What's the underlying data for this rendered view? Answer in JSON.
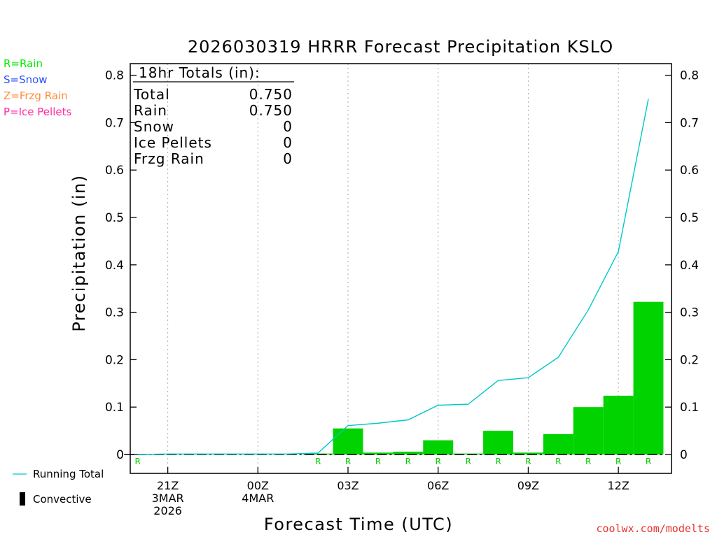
{
  "chart_data": {
    "type": "bar",
    "title": "2026030319 HRRR Forecast Precipitation KSLO",
    "xlabel": "Forecast Time (UTC)",
    "ylabel": "Precipitation (in)",
    "ylim": [
      0,
      0.8
    ],
    "yticks": [
      "0",
      "0.1",
      "0.2",
      "0.3",
      "0.4",
      "0.5",
      "0.6",
      "0.7",
      "0.8"
    ],
    "x_hours": [
      20,
      21,
      22,
      23,
      24,
      25,
      26,
      27,
      28,
      29,
      30,
      31,
      32,
      33,
      34,
      35,
      36,
      37
    ],
    "hourly_precip": [
      0.0,
      0.0,
      0.0,
      0.0,
      0.0,
      0.0,
      0.002,
      0.055,
      0.004,
      0.006,
      0.03,
      0.002,
      0.05,
      0.004,
      0.043,
      0.1,
      0.124,
      0.322
    ],
    "running_total": [
      0.0,
      0.001,
      0.001,
      0.001,
      0.001,
      0.001,
      0.003,
      0.061,
      0.066,
      0.073,
      0.104,
      0.106,
      0.156,
      0.162,
      0.205,
      0.305,
      0.428,
      0.75
    ],
    "precip_types": [
      "R",
      "",
      "",
      "",
      "",
      "",
      "R",
      "R",
      "R",
      "R",
      "R",
      "R",
      "R",
      "R",
      "R",
      "R",
      "R",
      "R"
    ],
    "x_tick_labels": [
      {
        "hour": 21,
        "lines": [
          "21Z",
          "3MAR",
          "2026"
        ]
      },
      {
        "hour": 24,
        "lines": [
          "00Z",
          "4MAR"
        ]
      },
      {
        "hour": 27,
        "lines": [
          "03Z"
        ]
      },
      {
        "hour": 30,
        "lines": [
          "06Z"
        ]
      },
      {
        "hour": 33,
        "lines": [
          "09Z"
        ]
      },
      {
        "hour": 36,
        "lines": [
          "12Z"
        ]
      }
    ],
    "colors": {
      "rain": "#00d300",
      "running_total": "#00c8c8",
      "axis": "#000000",
      "grid": "#aaaaaa"
    }
  },
  "totals_box": {
    "header": "18hr Totals (in):",
    "rows": [
      {
        "label": "Total",
        "value": "0.750"
      },
      {
        "label": "Rain",
        "value": "0.750"
      },
      {
        "label": "Snow",
        "value": "0"
      },
      {
        "label": "Ice Pellets",
        "value": "0"
      },
      {
        "label": "Frzg Rain",
        "value": "0"
      }
    ]
  },
  "type_legend": [
    {
      "text": "R=Rain",
      "color": "#00ee00"
    },
    {
      "text": "S=Snow",
      "color": "#3050ff"
    },
    {
      "text": "Z=Frzg Rain",
      "color": "#ff8c3c"
    },
    {
      "text": "P=Ice Pellets",
      "color": "#ff2aa0"
    }
  ],
  "bottom_legend": {
    "running_total": "Running Total",
    "convective": "Convective"
  },
  "credit": "coolwx.com/modelts"
}
